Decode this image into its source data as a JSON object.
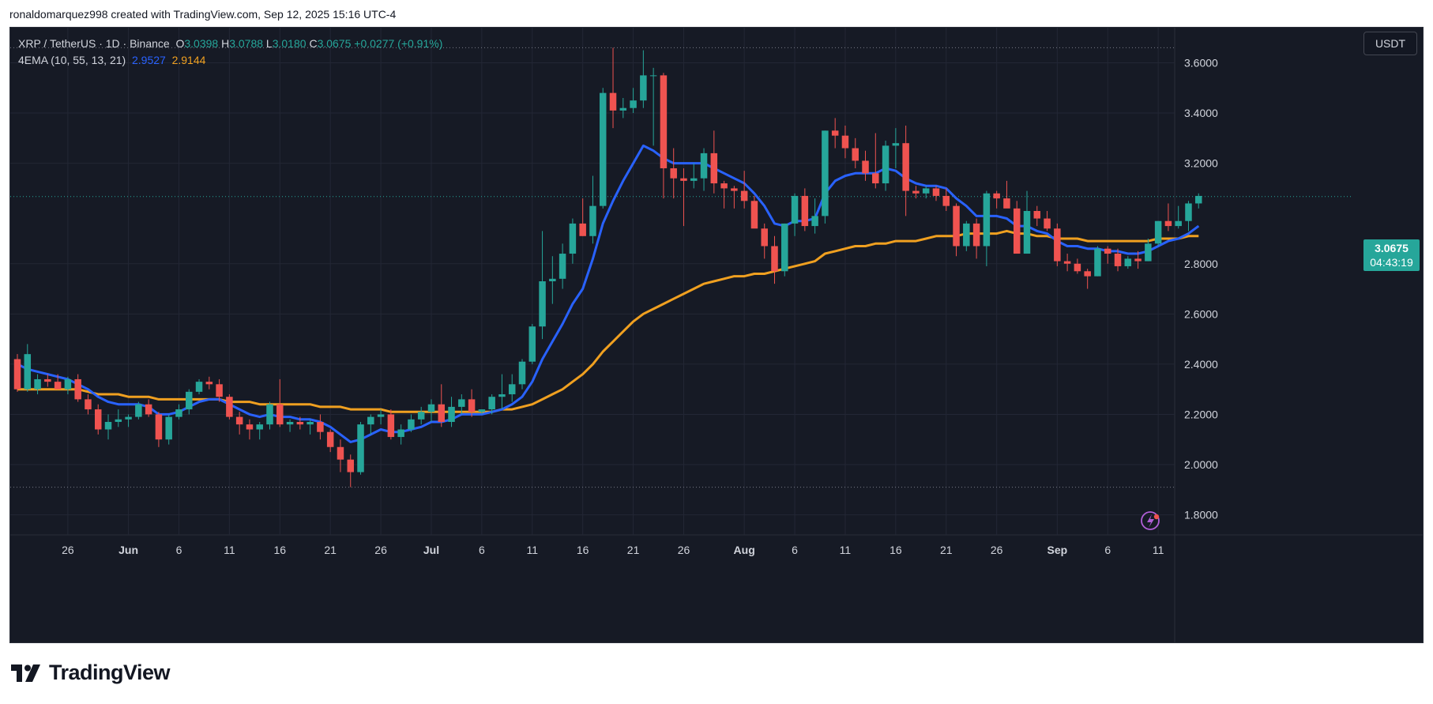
{
  "header": {
    "text": "ronaldomarquez998 created with TradingView.com, Sep 12, 2025 15:16 UTC-4"
  },
  "legend": {
    "symbol": "XRP / TetherUS · 1D · Binance",
    "o_label": "O",
    "o_value": "3.0398",
    "h_label": "H",
    "h_value": "3.0788",
    "l_label": "L",
    "l_value": "3.0180",
    "c_label": "C",
    "c_value": "3.0675",
    "change": "+0.0277 (+0.91%)",
    "indicator": "4EMA (10, 55, 13, 21)",
    "ema_fast_value": "2.9527",
    "ema_slow_value": "2.9144"
  },
  "currency_button": "USDT",
  "price_tag": {
    "price": "3.0675",
    "countdown": "04:43:19"
  },
  "footer": {
    "brand": "TradingView"
  },
  "colors": {
    "up": "#26a69a",
    "down": "#ef5350",
    "ema_fast": "#2962ff",
    "ema_slow": "#f0a020",
    "background": "#161a25",
    "grid": "#232735"
  },
  "chart_data": {
    "type": "candlestick",
    "ylim": [
      1.72,
      3.74
    ],
    "yticks": [
      "3.6000",
      "3.4000",
      "3.2000",
      "2.8000",
      "2.6000",
      "2.4000",
      "2.2000",
      "2.0000",
      "1.8000"
    ],
    "xticks": [
      {
        "label": "26",
        "index": 5
      },
      {
        "label": "Jun",
        "index": 11
      },
      {
        "label": "6",
        "index": 16
      },
      {
        "label": "11",
        "index": 21
      },
      {
        "label": "16",
        "index": 26
      },
      {
        "label": "21",
        "index": 31
      },
      {
        "label": "26",
        "index": 36
      },
      {
        "label": "Jul",
        "index": 41
      },
      {
        "label": "6",
        "index": 46
      },
      {
        "label": "11",
        "index": 51
      },
      {
        "label": "16",
        "index": 56
      },
      {
        "label": "21",
        "index": 61
      },
      {
        "label": "26",
        "index": 66
      },
      {
        "label": "Aug",
        "index": 72
      },
      {
        "label": "6",
        "index": 77
      },
      {
        "label": "11",
        "index": 82
      },
      {
        "label": "16",
        "index": 87
      },
      {
        "label": "21",
        "index": 92
      },
      {
        "label": "26",
        "index": 97
      },
      {
        "label": "Sep",
        "index": 103
      },
      {
        "label": "6",
        "index": 108
      },
      {
        "label": "11",
        "index": 113
      }
    ],
    "high_line": 3.66,
    "low_line": 1.91,
    "last_price": 3.0675,
    "candles": [
      [
        2.42,
        2.44,
        2.29,
        2.3
      ],
      [
        2.3,
        2.48,
        2.29,
        2.44
      ],
      [
        2.3,
        2.36,
        2.28,
        2.34
      ],
      [
        2.34,
        2.36,
        2.31,
        2.33
      ],
      [
        2.33,
        2.36,
        2.3,
        2.3
      ],
      [
        2.3,
        2.35,
        2.28,
        2.34
      ],
      [
        2.34,
        2.36,
        2.25,
        2.26
      ],
      [
        2.26,
        2.28,
        2.2,
        2.22
      ],
      [
        2.22,
        2.24,
        2.12,
        2.14
      ],
      [
        2.14,
        2.2,
        2.1,
        2.17
      ],
      [
        2.17,
        2.22,
        2.15,
        2.18
      ],
      [
        2.18,
        2.2,
        2.15,
        2.19
      ],
      [
        2.19,
        2.25,
        2.18,
        2.24
      ],
      [
        2.24,
        2.26,
        2.19,
        2.2
      ],
      [
        2.2,
        2.21,
        2.07,
        2.1
      ],
      [
        2.1,
        2.2,
        2.08,
        2.19
      ],
      [
        2.19,
        2.24,
        2.18,
        2.22
      ],
      [
        2.22,
        2.3,
        2.2,
        2.29
      ],
      [
        2.29,
        2.34,
        2.28,
        2.33
      ],
      [
        2.33,
        2.35,
        2.3,
        2.32
      ],
      [
        2.32,
        2.34,
        2.25,
        2.27
      ],
      [
        2.27,
        2.28,
        2.18,
        2.19
      ],
      [
        2.19,
        2.21,
        2.12,
        2.16
      ],
      [
        2.16,
        2.18,
        2.1,
        2.14
      ],
      [
        2.14,
        2.17,
        2.1,
        2.16
      ],
      [
        2.16,
        2.25,
        2.14,
        2.24
      ],
      [
        2.24,
        2.34,
        2.15,
        2.16
      ],
      [
        2.16,
        2.18,
        2.13,
        2.17
      ],
      [
        2.17,
        2.19,
        2.14,
        2.16
      ],
      [
        2.16,
        2.18,
        2.12,
        2.17
      ],
      [
        2.17,
        2.2,
        2.1,
        2.13
      ],
      [
        2.13,
        2.14,
        2.05,
        2.07
      ],
      [
        2.07,
        2.1,
        1.97,
        2.02
      ],
      [
        2.02,
        2.04,
        1.91,
        1.97
      ],
      [
        1.97,
        2.17,
        1.96,
        2.16
      ],
      [
        2.16,
        2.2,
        2.12,
        2.19
      ],
      [
        2.19,
        2.22,
        2.16,
        2.2
      ],
      [
        2.2,
        2.22,
        2.1,
        2.11
      ],
      [
        2.11,
        2.16,
        2.08,
        2.14
      ],
      [
        2.14,
        2.2,
        2.13,
        2.18
      ],
      [
        2.18,
        2.23,
        2.16,
        2.21
      ],
      [
        2.21,
        2.26,
        2.17,
        2.24
      ],
      [
        2.24,
        2.32,
        2.15,
        2.17
      ],
      [
        2.17,
        2.27,
        2.15,
        2.23
      ],
      [
        2.23,
        2.28,
        2.2,
        2.26
      ],
      [
        2.26,
        2.3,
        2.19,
        2.21
      ],
      [
        2.21,
        2.22,
        2.2,
        2.22
      ],
      [
        2.22,
        2.28,
        2.2,
        2.27
      ],
      [
        2.27,
        2.36,
        2.22,
        2.28
      ],
      [
        2.28,
        2.36,
        2.25,
        2.32
      ],
      [
        2.32,
        2.42,
        2.3,
        2.41
      ],
      [
        2.41,
        2.56,
        2.4,
        2.55
      ],
      [
        2.55,
        2.93,
        2.5,
        2.73
      ],
      [
        2.73,
        2.83,
        2.64,
        2.74
      ],
      [
        2.74,
        2.88,
        2.7,
        2.84
      ],
      [
        2.84,
        2.98,
        2.8,
        2.96
      ],
      [
        2.96,
        3.06,
        2.91,
        2.91
      ],
      [
        2.91,
        3.15,
        2.88,
        3.03
      ],
      [
        3.03,
        3.5,
        3.02,
        3.48
      ],
      [
        3.48,
        3.66,
        3.34,
        3.41
      ],
      [
        3.41,
        3.46,
        3.38,
        3.42
      ],
      [
        3.42,
        3.5,
        3.4,
        3.45
      ],
      [
        3.45,
        3.65,
        3.42,
        3.55
      ],
      [
        3.55,
        3.58,
        3.27,
        3.55
      ],
      [
        3.55,
        3.56,
        3.06,
        3.18
      ],
      [
        3.18,
        3.26,
        3.06,
        3.14
      ],
      [
        3.14,
        3.18,
        2.95,
        3.13
      ],
      [
        3.13,
        3.2,
        3.1,
        3.14
      ],
      [
        3.14,
        3.26,
        3.09,
        3.24
      ],
      [
        3.24,
        3.33,
        3.08,
        3.12
      ],
      [
        3.12,
        3.13,
        3.02,
        3.1
      ],
      [
        3.1,
        3.11,
        3.02,
        3.09
      ],
      [
        3.09,
        3.17,
        3.02,
        3.05
      ],
      [
        3.05,
        3.07,
        2.96,
        2.94
      ],
      [
        2.94,
        2.96,
        2.82,
        2.87
      ],
      [
        2.87,
        2.91,
        2.72,
        2.77
      ],
      [
        2.77,
        2.96,
        2.75,
        2.96
      ],
      [
        2.96,
        3.08,
        2.91,
        3.07
      ],
      [
        3.07,
        3.1,
        2.93,
        2.95
      ],
      [
        2.95,
        3.06,
        2.92,
        2.99
      ],
      [
        2.99,
        3.33,
        2.96,
        3.33
      ],
      [
        3.33,
        3.38,
        3.26,
        3.31
      ],
      [
        3.31,
        3.35,
        3.22,
        3.26
      ],
      [
        3.26,
        3.3,
        3.18,
        3.21
      ],
      [
        3.21,
        3.25,
        3.13,
        3.16
      ],
      [
        3.16,
        3.32,
        3.1,
        3.12
      ],
      [
        3.12,
        3.29,
        3.09,
        3.27
      ],
      [
        3.27,
        3.34,
        3.18,
        3.28
      ],
      [
        3.28,
        3.35,
        2.99,
        3.09
      ],
      [
        3.09,
        3.11,
        3.06,
        3.08
      ],
      [
        3.08,
        3.11,
        3.06,
        3.1
      ],
      [
        3.1,
        3.11,
        3.05,
        3.07
      ],
      [
        3.07,
        3.1,
        3.01,
        3.03
      ],
      [
        3.03,
        3.04,
        2.83,
        2.87
      ],
      [
        2.87,
        2.97,
        2.85,
        2.96
      ],
      [
        2.96,
        2.98,
        2.82,
        2.87
      ],
      [
        2.87,
        3.09,
        2.79,
        3.08
      ],
      [
        3.08,
        3.09,
        3.02,
        3.06
      ],
      [
        3.06,
        3.13,
        3.03,
        3.02
      ],
      [
        3.02,
        3.05,
        2.85,
        2.84
      ],
      [
        2.84,
        3.09,
        2.85,
        3.01
      ],
      [
        3.01,
        3.03,
        2.95,
        2.98
      ],
      [
        2.98,
        3.01,
        2.93,
        2.94
      ],
      [
        2.94,
        2.96,
        2.79,
        2.81
      ],
      [
        2.81,
        2.84,
        2.77,
        2.8
      ],
      [
        2.8,
        2.82,
        2.76,
        2.77
      ],
      [
        2.77,
        2.78,
        2.7,
        2.75
      ],
      [
        2.75,
        2.87,
        2.75,
        2.86
      ],
      [
        2.86,
        2.87,
        2.8,
        2.84
      ],
      [
        2.84,
        2.86,
        2.77,
        2.79
      ],
      [
        2.79,
        2.83,
        2.78,
        2.82
      ],
      [
        2.82,
        2.85,
        2.78,
        2.81
      ],
      [
        2.81,
        2.9,
        2.81,
        2.88
      ],
      [
        2.88,
        2.97,
        2.87,
        2.97
      ],
      [
        2.97,
        3.04,
        2.93,
        2.95
      ],
      [
        2.95,
        3.03,
        2.94,
        2.97
      ],
      [
        2.97,
        3.05,
        2.93,
        3.04
      ],
      [
        3.04,
        3.08,
        3.02,
        3.07
      ]
    ],
    "ema_fast": [
      2.4,
      2.38,
      2.37,
      2.36,
      2.35,
      2.34,
      2.32,
      2.3,
      2.27,
      2.25,
      2.24,
      2.24,
      2.24,
      2.23,
      2.2,
      2.2,
      2.21,
      2.23,
      2.25,
      2.26,
      2.26,
      2.24,
      2.22,
      2.2,
      2.19,
      2.2,
      2.19,
      2.19,
      2.18,
      2.18,
      2.17,
      2.15,
      2.12,
      2.09,
      2.1,
      2.12,
      2.14,
      2.13,
      2.13,
      2.14,
      2.15,
      2.17,
      2.17,
      2.18,
      2.2,
      2.2,
      2.2,
      2.21,
      2.22,
      2.24,
      2.27,
      2.33,
      2.42,
      2.49,
      2.56,
      2.64,
      2.7,
      2.82,
      2.96,
      3.05,
      3.13,
      3.2,
      3.27,
      3.25,
      3.22,
      3.2,
      3.2,
      3.2,
      3.2,
      3.18,
      3.16,
      3.14,
      3.12,
      3.08,
      3.03,
      2.96,
      2.95,
      2.97,
      2.97,
      2.98,
      3.08,
      3.13,
      3.15,
      3.16,
      3.16,
      3.16,
      3.18,
      3.17,
      3.14,
      3.12,
      3.11,
      3.11,
      3.1,
      3.06,
      3.03,
      2.99,
      2.99,
      2.99,
      2.98,
      2.95,
      2.95,
      2.93,
      2.92,
      2.89,
      2.87,
      2.87,
      2.86,
      2.86,
      2.85,
      2.85,
      2.84,
      2.84,
      2.85,
      2.87,
      2.89,
      2.9,
      2.92,
      2.95
    ],
    "ema_slow": [
      2.3,
      2.3,
      2.3,
      2.3,
      2.3,
      2.3,
      2.3,
      2.29,
      2.28,
      2.28,
      2.28,
      2.27,
      2.27,
      2.27,
      2.26,
      2.26,
      2.26,
      2.26,
      2.26,
      2.26,
      2.26,
      2.25,
      2.25,
      2.25,
      2.24,
      2.24,
      2.24,
      2.24,
      2.24,
      2.24,
      2.23,
      2.23,
      2.23,
      2.22,
      2.22,
      2.22,
      2.22,
      2.21,
      2.21,
      2.21,
      2.21,
      2.21,
      2.21,
      2.21,
      2.21,
      2.21,
      2.21,
      2.21,
      2.22,
      2.22,
      2.23,
      2.24,
      2.26,
      2.28,
      2.3,
      2.33,
      2.36,
      2.4,
      2.45,
      2.49,
      2.53,
      2.57,
      2.6,
      2.62,
      2.64,
      2.66,
      2.68,
      2.7,
      2.72,
      2.73,
      2.74,
      2.75,
      2.75,
      2.76,
      2.76,
      2.77,
      2.78,
      2.79,
      2.8,
      2.81,
      2.84,
      2.85,
      2.86,
      2.87,
      2.87,
      2.88,
      2.88,
      2.89,
      2.89,
      2.89,
      2.9,
      2.91,
      2.91,
      2.91,
      2.92,
      2.92,
      2.92,
      2.92,
      2.93,
      2.92,
      2.92,
      2.91,
      2.91,
      2.9,
      2.9,
      2.9,
      2.89,
      2.89,
      2.89,
      2.89,
      2.89,
      2.89,
      2.89,
      2.9,
      2.9,
      2.9,
      2.91,
      2.91
    ]
  }
}
